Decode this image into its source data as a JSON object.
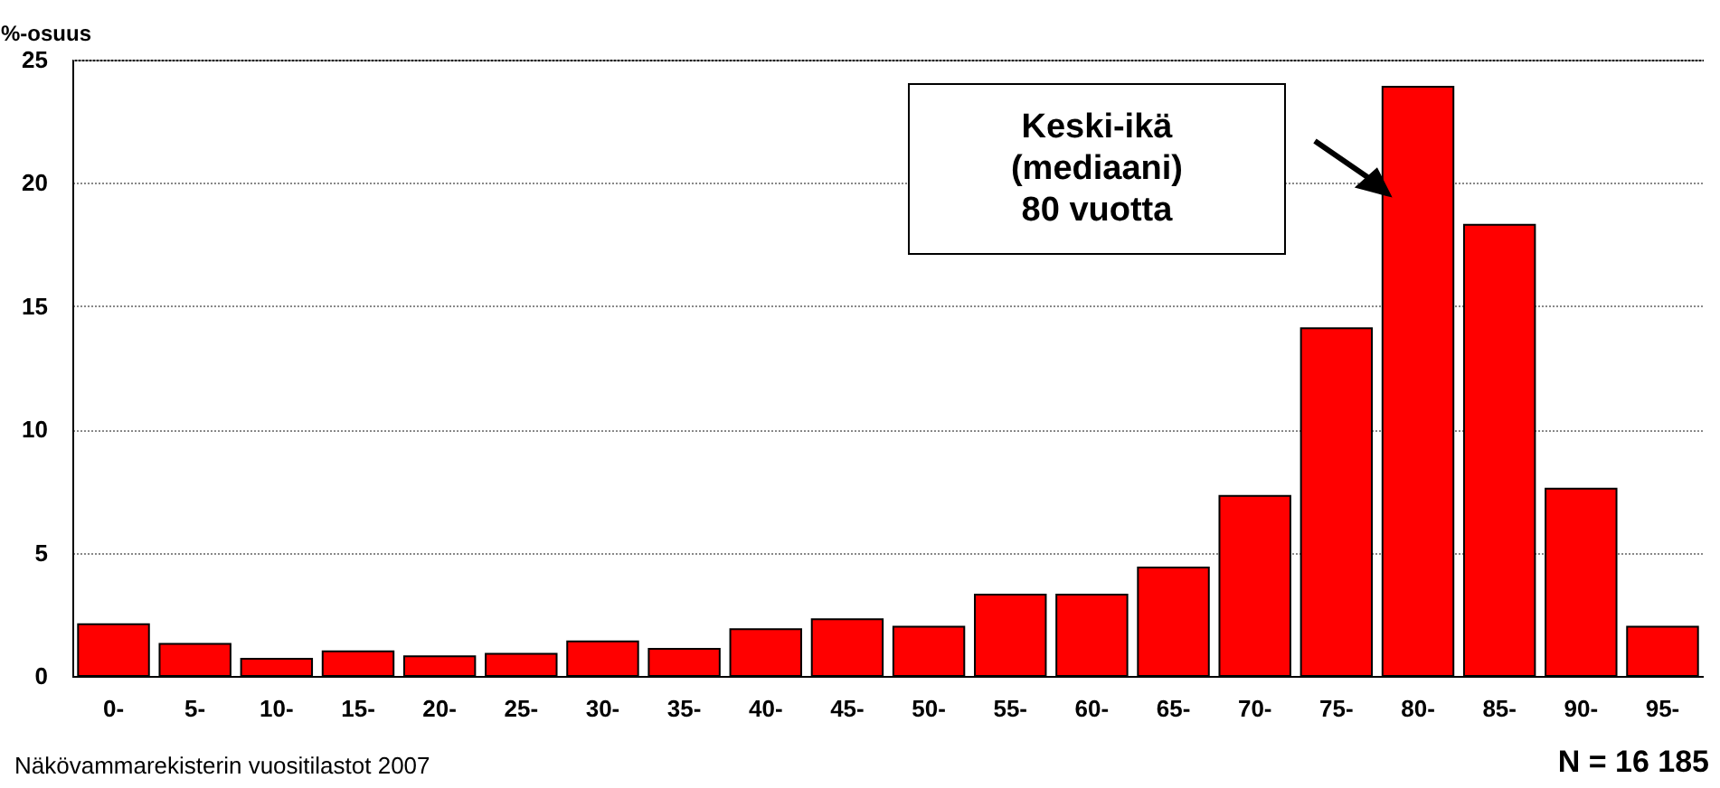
{
  "chart_data": {
    "type": "bar",
    "ylabel": "%-osuus",
    "categories": [
      "0-",
      "5-",
      "10-",
      "15-",
      "20-",
      "25-",
      "30-",
      "35-",
      "40-",
      "45-",
      "50-",
      "55-",
      "60-",
      "65-",
      "70-",
      "75-",
      "80-",
      "85-",
      "90-",
      "95-"
    ],
    "values": [
      2.1,
      1.3,
      0.7,
      1.0,
      0.8,
      0.9,
      1.4,
      1.1,
      1.9,
      2.3,
      2.0,
      3.3,
      3.3,
      4.4,
      7.3,
      14.1,
      23.9,
      18.3,
      7.6,
      2.0
    ],
    "color": "#ff0000",
    "ylim": [
      0,
      25
    ],
    "yticks": [
      0,
      5,
      10,
      15,
      20,
      25
    ],
    "grid": "y",
    "annotations": [
      "Keski-ikä\n(mediaani)\n80 vuotta",
      "Näkövammarekisterin vuositilastot 2007",
      "N = 16 185"
    ]
  }
}
